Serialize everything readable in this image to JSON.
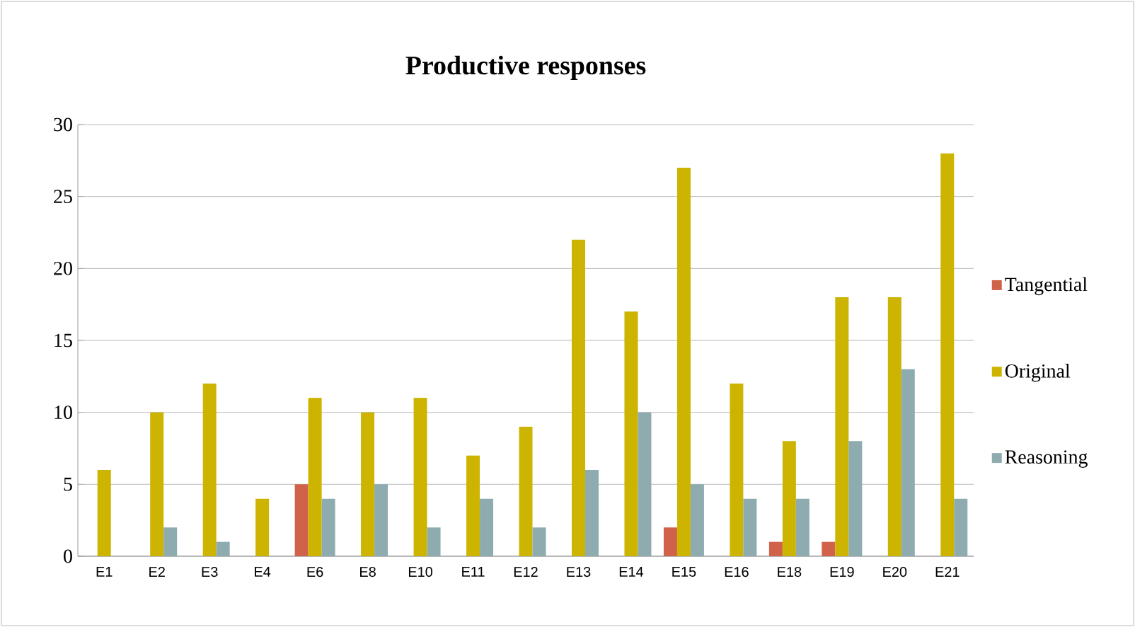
{
  "chart_data": {
    "type": "bar",
    "title": "Productive responses",
    "categories": [
      "E1",
      "E2",
      "E3",
      "E4",
      "E6",
      "E8",
      "E10",
      "E11",
      "E12",
      "E13",
      "E14",
      "E15",
      "E16",
      "E18",
      "E19",
      "E20",
      "E21"
    ],
    "series": [
      {
        "name": "Tangential",
        "color": "#d0624a",
        "values": [
          null,
          null,
          null,
          null,
          5,
          null,
          null,
          null,
          null,
          null,
          null,
          2,
          null,
          1,
          1,
          null,
          null
        ]
      },
      {
        "name": "Original",
        "color": "#cdb400",
        "values": [
          6,
          10,
          12,
          4,
          11,
          10,
          11,
          7,
          9,
          22,
          17,
          27,
          12,
          8,
          18,
          18,
          28
        ]
      },
      {
        "name": "Reasoning",
        "color": "#8eacaf",
        "values": [
          null,
          2,
          1,
          null,
          4,
          5,
          2,
          4,
          2,
          6,
          10,
          5,
          4,
          4,
          8,
          13,
          4
        ]
      }
    ],
    "ylim": [
      0,
      30
    ],
    "yticks": [
      0,
      5,
      10,
      15,
      20,
      25,
      30
    ],
    "grid": "y",
    "legend": "right"
  }
}
